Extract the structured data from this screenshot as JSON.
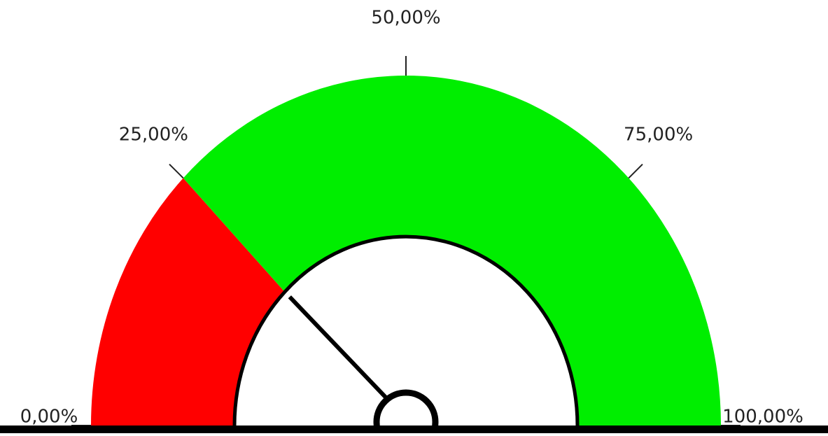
{
  "chart_data": {
    "type": "gauge",
    "range": [
      0,
      100
    ],
    "bands": [
      {
        "from": 0,
        "to": 25,
        "color": "#ff0000"
      },
      {
        "from": 25,
        "to": 100,
        "color": "#00ee00"
      }
    ],
    "value": 25,
    "ticks": [
      {
        "value": 0,
        "label": "0,00%"
      },
      {
        "value": 25,
        "label": "25,00%"
      },
      {
        "value": 50,
        "label": "50,00%"
      },
      {
        "value": 75,
        "label": "75,00%"
      },
      {
        "value": 100,
        "label": "100,00%"
      }
    ]
  }
}
